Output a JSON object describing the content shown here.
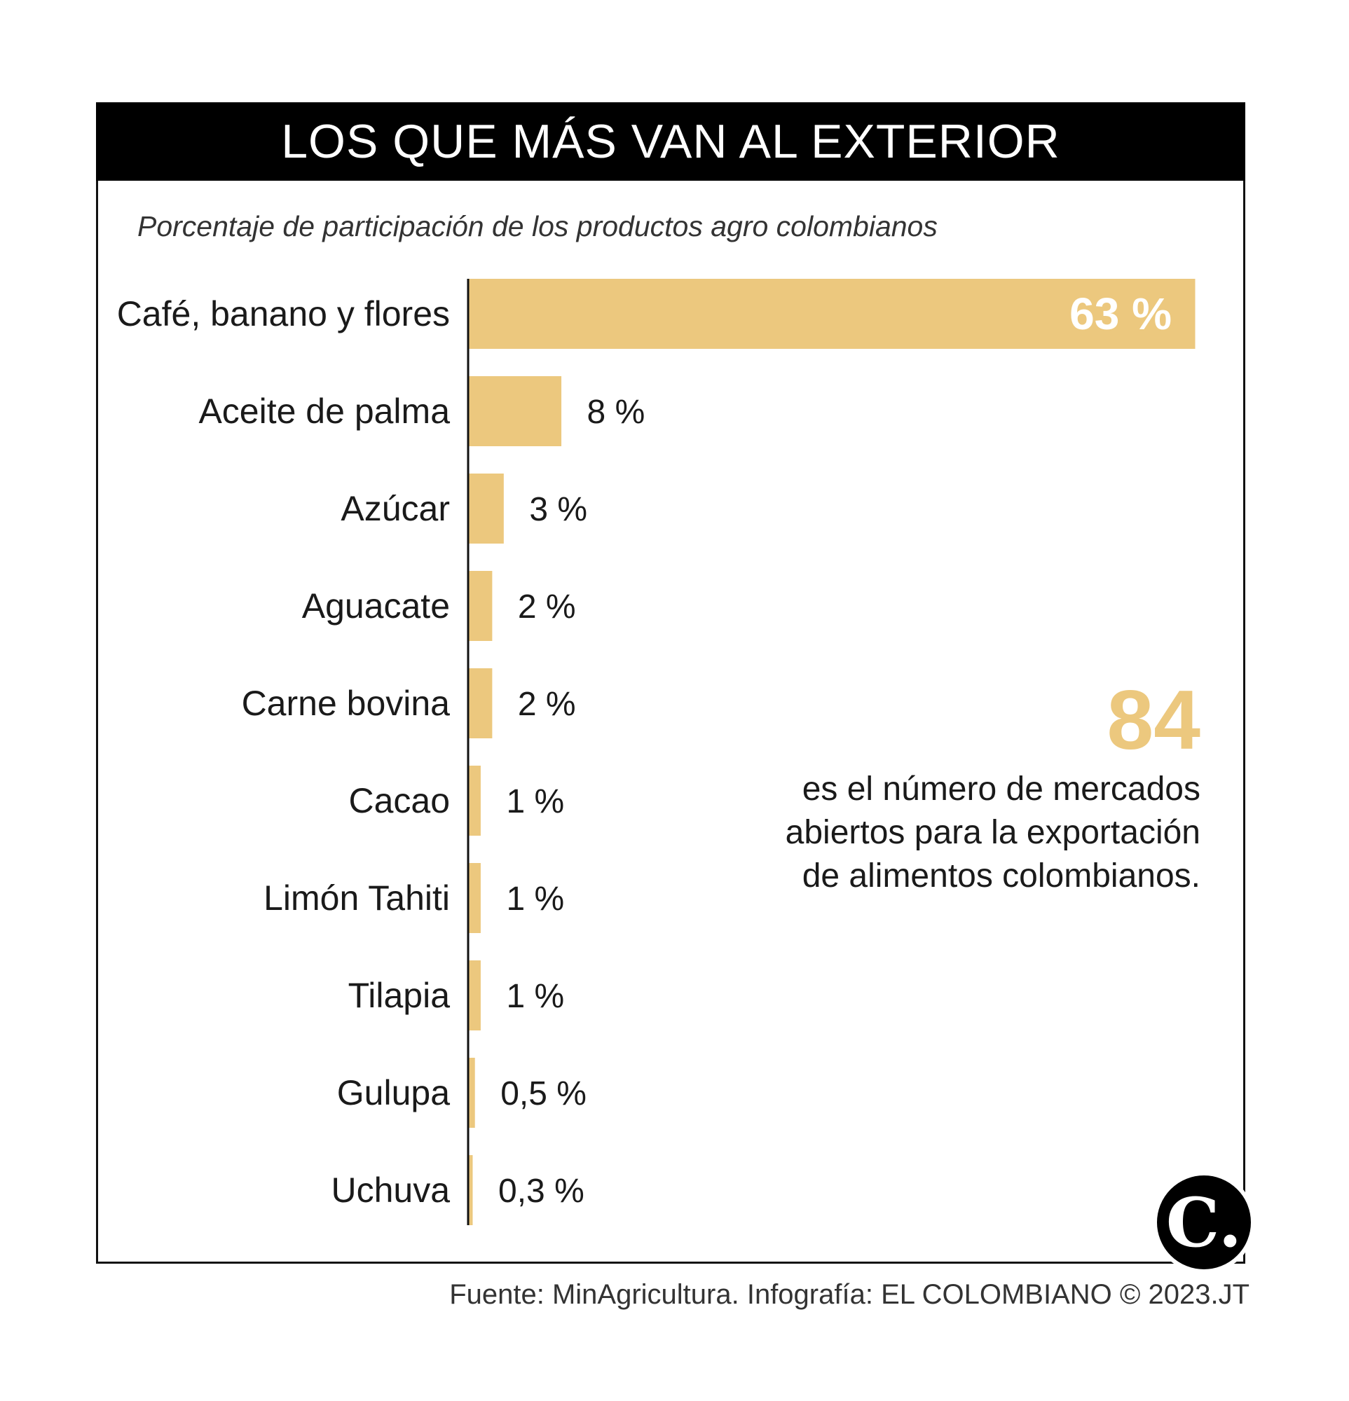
{
  "header": {
    "title": "LOS QUE MÁS VAN AL EXTERIOR"
  },
  "subtitle": "Porcentaje de participación de los productos agro colombianos",
  "chart_data": {
    "type": "bar",
    "orientation": "horizontal",
    "categories": [
      "Café, banano y flores",
      "Aceite de palma",
      "Azúcar",
      "Aguacate",
      "Carne bovina",
      "Cacao",
      "Limón Tahiti",
      "Tilapia",
      "Gulupa",
      "Uchuva"
    ],
    "values": [
      63,
      8,
      3,
      2,
      2,
      1,
      1,
      1,
      0.5,
      0.3
    ],
    "value_labels": [
      "63 %",
      "8 %",
      "3 %",
      "2 %",
      "2 %",
      "1 %",
      "1 %",
      "1 %",
      "0,5 %",
      "0,3 %"
    ],
    "bar_color": "#ecc87e",
    "xlim": [
      0,
      63
    ],
    "grid": false,
    "legend": "none"
  },
  "stat": {
    "number": "84",
    "text": "es el número de mercados abiertos para la exportación de alimentos colombianos."
  },
  "logo": {
    "letter": "C."
  },
  "source": "Fuente: MinAgricultura. Infografía: EL COLOMBIANO © 2023.JT",
  "colors": {
    "accent": "#ecc87e",
    "header_bg": "#000000"
  }
}
